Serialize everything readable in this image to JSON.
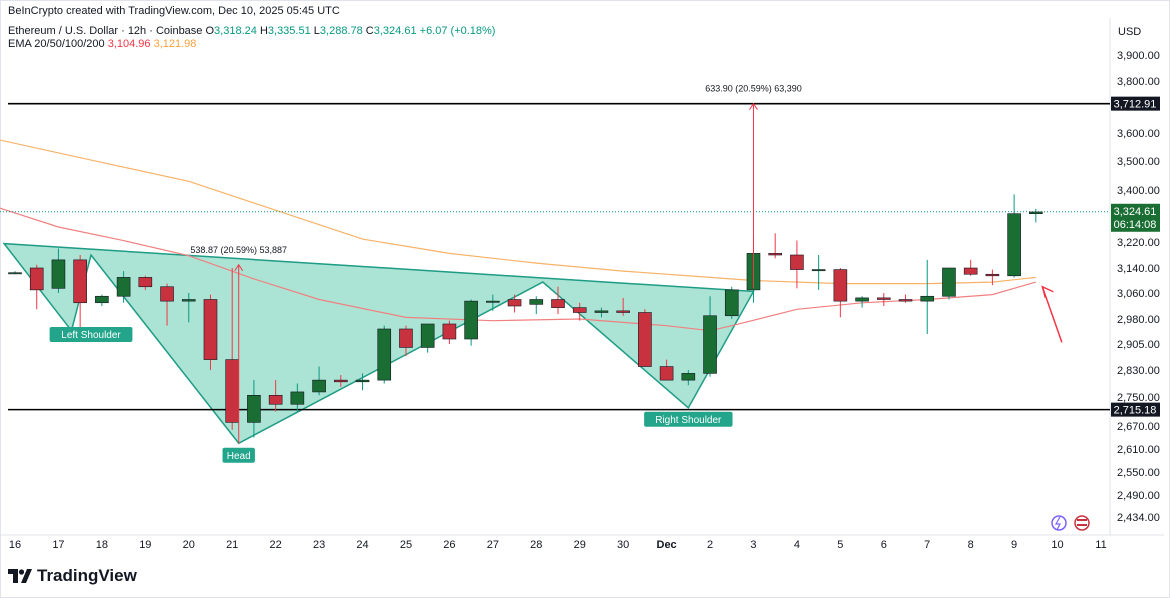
{
  "header": {
    "credit": "BeInCrypto created with TradingView.com, Dec 10, 2025 05:45 UTC",
    "symbol": "Ethereum / U.S. Dollar · 12h · Coinbase",
    "ohlc": {
      "o_label": "O",
      "o": "3,318.24",
      "h_label": "H",
      "h": "3,335.51",
      "l_label": "L",
      "l": "3,288.78",
      "c_label": "C",
      "c": "3,324.61",
      "change": "+6.07 (+0.18%)"
    },
    "ema_label": "EMA 20/50/100/200",
    "ema20": "3,104.96",
    "ema50": "3,121.98"
  },
  "brand": "TradingView",
  "currency": "USD",
  "colors": {
    "up": "#1a6e33",
    "down": "#c8323f",
    "wick_up": "#089981",
    "wick_down": "#f23645",
    "ema20": "#f08080",
    "ema50": "#f7b267",
    "pattern_fill": "#8fd9c6",
    "pattern_stroke": "#1f9c85",
    "label_bg": "#22a58b",
    "level_line": "#000000",
    "price_tag": "#1a6e33",
    "measure": "#f23645"
  },
  "chart_data": {
    "type": "candlestick",
    "y_axis": {
      "ticks": [
        "3,900.00",
        "3,800.00",
        "3,600.00",
        "3,500.00",
        "3,400.00",
        "3,220.00",
        "3,140.00",
        "3,060.00",
        "2,980.00",
        "2,905.00",
        "2,830.00",
        "2,750.00",
        "2,670.00",
        "2,610.00",
        "2,550.00",
        "2,490.00",
        "2,434.00"
      ],
      "tick_values": [
        3900,
        3800,
        3600,
        3500,
        3400,
        3220,
        3140,
        3060,
        2980,
        2905,
        2830,
        2750,
        2670,
        2610,
        2550,
        2490,
        2434
      ]
    },
    "x_axis": {
      "labels": [
        "16",
        "17",
        "18",
        "19",
        "20",
        "21",
        "22",
        "23",
        "24",
        "25",
        "26",
        "27",
        "28",
        "29",
        "30",
        "Dec",
        "2",
        "3",
        "4",
        "5",
        "6",
        "7",
        "8",
        "9",
        "10",
        "11"
      ],
      "bold_label": "Dec"
    },
    "candles": [
      [
        3125,
        3130,
        3120,
        3125
      ],
      [
        3140,
        3150,
        3010,
        3070
      ],
      [
        3075,
        3200,
        3060,
        3165
      ],
      [
        3165,
        3180,
        2950,
        3030
      ],
      [
        3030,
        3055,
        3020,
        3050
      ],
      [
        3050,
        3130,
        3030,
        3110
      ],
      [
        3110,
        3115,
        3070,
        3080
      ],
      [
        3080,
        3090,
        2960,
        3035
      ],
      [
        3035,
        3060,
        2970,
        3040
      ],
      [
        3040,
        3055,
        2830,
        2860
      ],
      [
        2860,
        3140,
        2660,
        2680
      ],
      [
        2680,
        2800,
        2640,
        2755
      ],
      [
        2755,
        2800,
        2710,
        2730
      ],
      [
        2730,
        2790,
        2710,
        2765
      ],
      [
        2765,
        2840,
        2755,
        2800
      ],
      [
        2800,
        2815,
        2780,
        2795
      ],
      [
        2795,
        2820,
        2770,
        2800
      ],
      [
        2800,
        2960,
        2790,
        2950
      ],
      [
        2950,
        2960,
        2870,
        2895
      ],
      [
        2895,
        2965,
        2880,
        2965
      ],
      [
        2965,
        2975,
        2905,
        2920
      ],
      [
        2920,
        3040,
        2900,
        3035
      ],
      [
        3035,
        3055,
        3005,
        3035
      ],
      [
        3040,
        3055,
        3000,
        3020
      ],
      [
        3025,
        3050,
        2995,
        3040
      ],
      [
        3040,
        3080,
        2995,
        3015
      ],
      [
        3015,
        3030,
        2975,
        3000
      ],
      [
        3000,
        3015,
        2985,
        3005
      ],
      [
        3005,
        3045,
        2990,
        3000
      ],
      [
        3000,
        3010,
        2840,
        2840
      ],
      [
        2840,
        2860,
        2800,
        2800
      ],
      [
        2800,
        2830,
        2785,
        2820
      ],
      [
        2820,
        3050,
        2810,
        2990
      ],
      [
        2990,
        3080,
        2980,
        3070
      ],
      [
        3070,
        3235,
        3030,
        3185
      ],
      [
        3185,
        3250,
        3170,
        3180
      ],
      [
        3180,
        3225,
        3075,
        3135
      ],
      [
        3135,
        3180,
        3070,
        3135
      ],
      [
        3135,
        3140,
        2985,
        3035
      ],
      [
        3035,
        3050,
        3015,
        3045
      ],
      [
        3045,
        3060,
        3020,
        3040
      ],
      [
        3040,
        3055,
        3030,
        3035
      ],
      [
        3035,
        3165,
        2935,
        3050
      ],
      [
        3050,
        3135,
        3040,
        3140
      ],
      [
        3140,
        3165,
        3115,
        3120
      ],
      [
        3120,
        3135,
        3085,
        3115
      ],
      [
        3115,
        3385,
        3110,
        3318
      ],
      [
        3318,
        3335,
        3288,
        3324
      ]
    ],
    "ema20_points": [
      [
        -1,
        3345
      ],
      [
        2,
        3272
      ],
      [
        5,
        3225
      ],
      [
        8,
        3178
      ],
      [
        11,
        3105
      ],
      [
        14,
        3040
      ],
      [
        18,
        2985
      ],
      [
        22,
        2975
      ],
      [
        26,
        2980
      ],
      [
        30,
        2960
      ],
      [
        32,
        2945
      ],
      [
        33,
        2960
      ],
      [
        36,
        3010
      ],
      [
        39,
        3030
      ],
      [
        42,
        3040
      ],
      [
        45,
        3055
      ],
      [
        47,
        3095
      ]
    ],
    "ema50_points": [
      [
        -1,
        3580
      ],
      [
        4,
        3495
      ],
      [
        8,
        3430
      ],
      [
        12,
        3330
      ],
      [
        16,
        3230
      ],
      [
        20,
        3185
      ],
      [
        24,
        3155
      ],
      [
        28,
        3130
      ],
      [
        32,
        3110
      ],
      [
        34,
        3100
      ],
      [
        38,
        3090
      ],
      [
        42,
        3090
      ],
      [
        45,
        3095
      ],
      [
        47,
        3110
      ]
    ],
    "levels": [
      {
        "price": 3712.91,
        "label": "3,712.91"
      },
      {
        "price": 2715.18,
        "label": "2,715.18"
      }
    ],
    "current_price": {
      "price": 3324.61,
      "label": "3,324.61",
      "countdown": "06:14:08"
    },
    "pattern": {
      "points": [
        [
          -0.5,
          3215
        ],
        [
          2.6,
          2945
        ],
        [
          3.5,
          3180
        ],
        [
          10.3,
          2625
        ],
        [
          24.3,
          3095
        ],
        [
          31.0,
          2720
        ],
        [
          34.0,
          3065
        ]
      ],
      "neckline": [
        [
          -0.5,
          3215
        ],
        [
          34.0,
          3065
        ]
      ]
    },
    "pattern_labels": [
      {
        "text": "Left Shoulder",
        "at": [
          3.5,
          2935
        ]
      },
      {
        "text": "Head",
        "at": [
          10.3,
          2595
        ]
      },
      {
        "text": "Right Shoulder",
        "at": [
          31.0,
          2690
        ]
      }
    ],
    "measurements": [
      {
        "text": "538.87 (20.59%) 53,887",
        "x": 10.3,
        "from": 2625,
        "to": 3150
      },
      {
        "text": "633.90 (20.59%) 63,390",
        "x": 34.0,
        "from": 3075,
        "to": 3712.91
      }
    ],
    "arrow": {
      "from": [
        48.2,
        2910
      ],
      "to": [
        47.3,
        3080
      ]
    }
  }
}
